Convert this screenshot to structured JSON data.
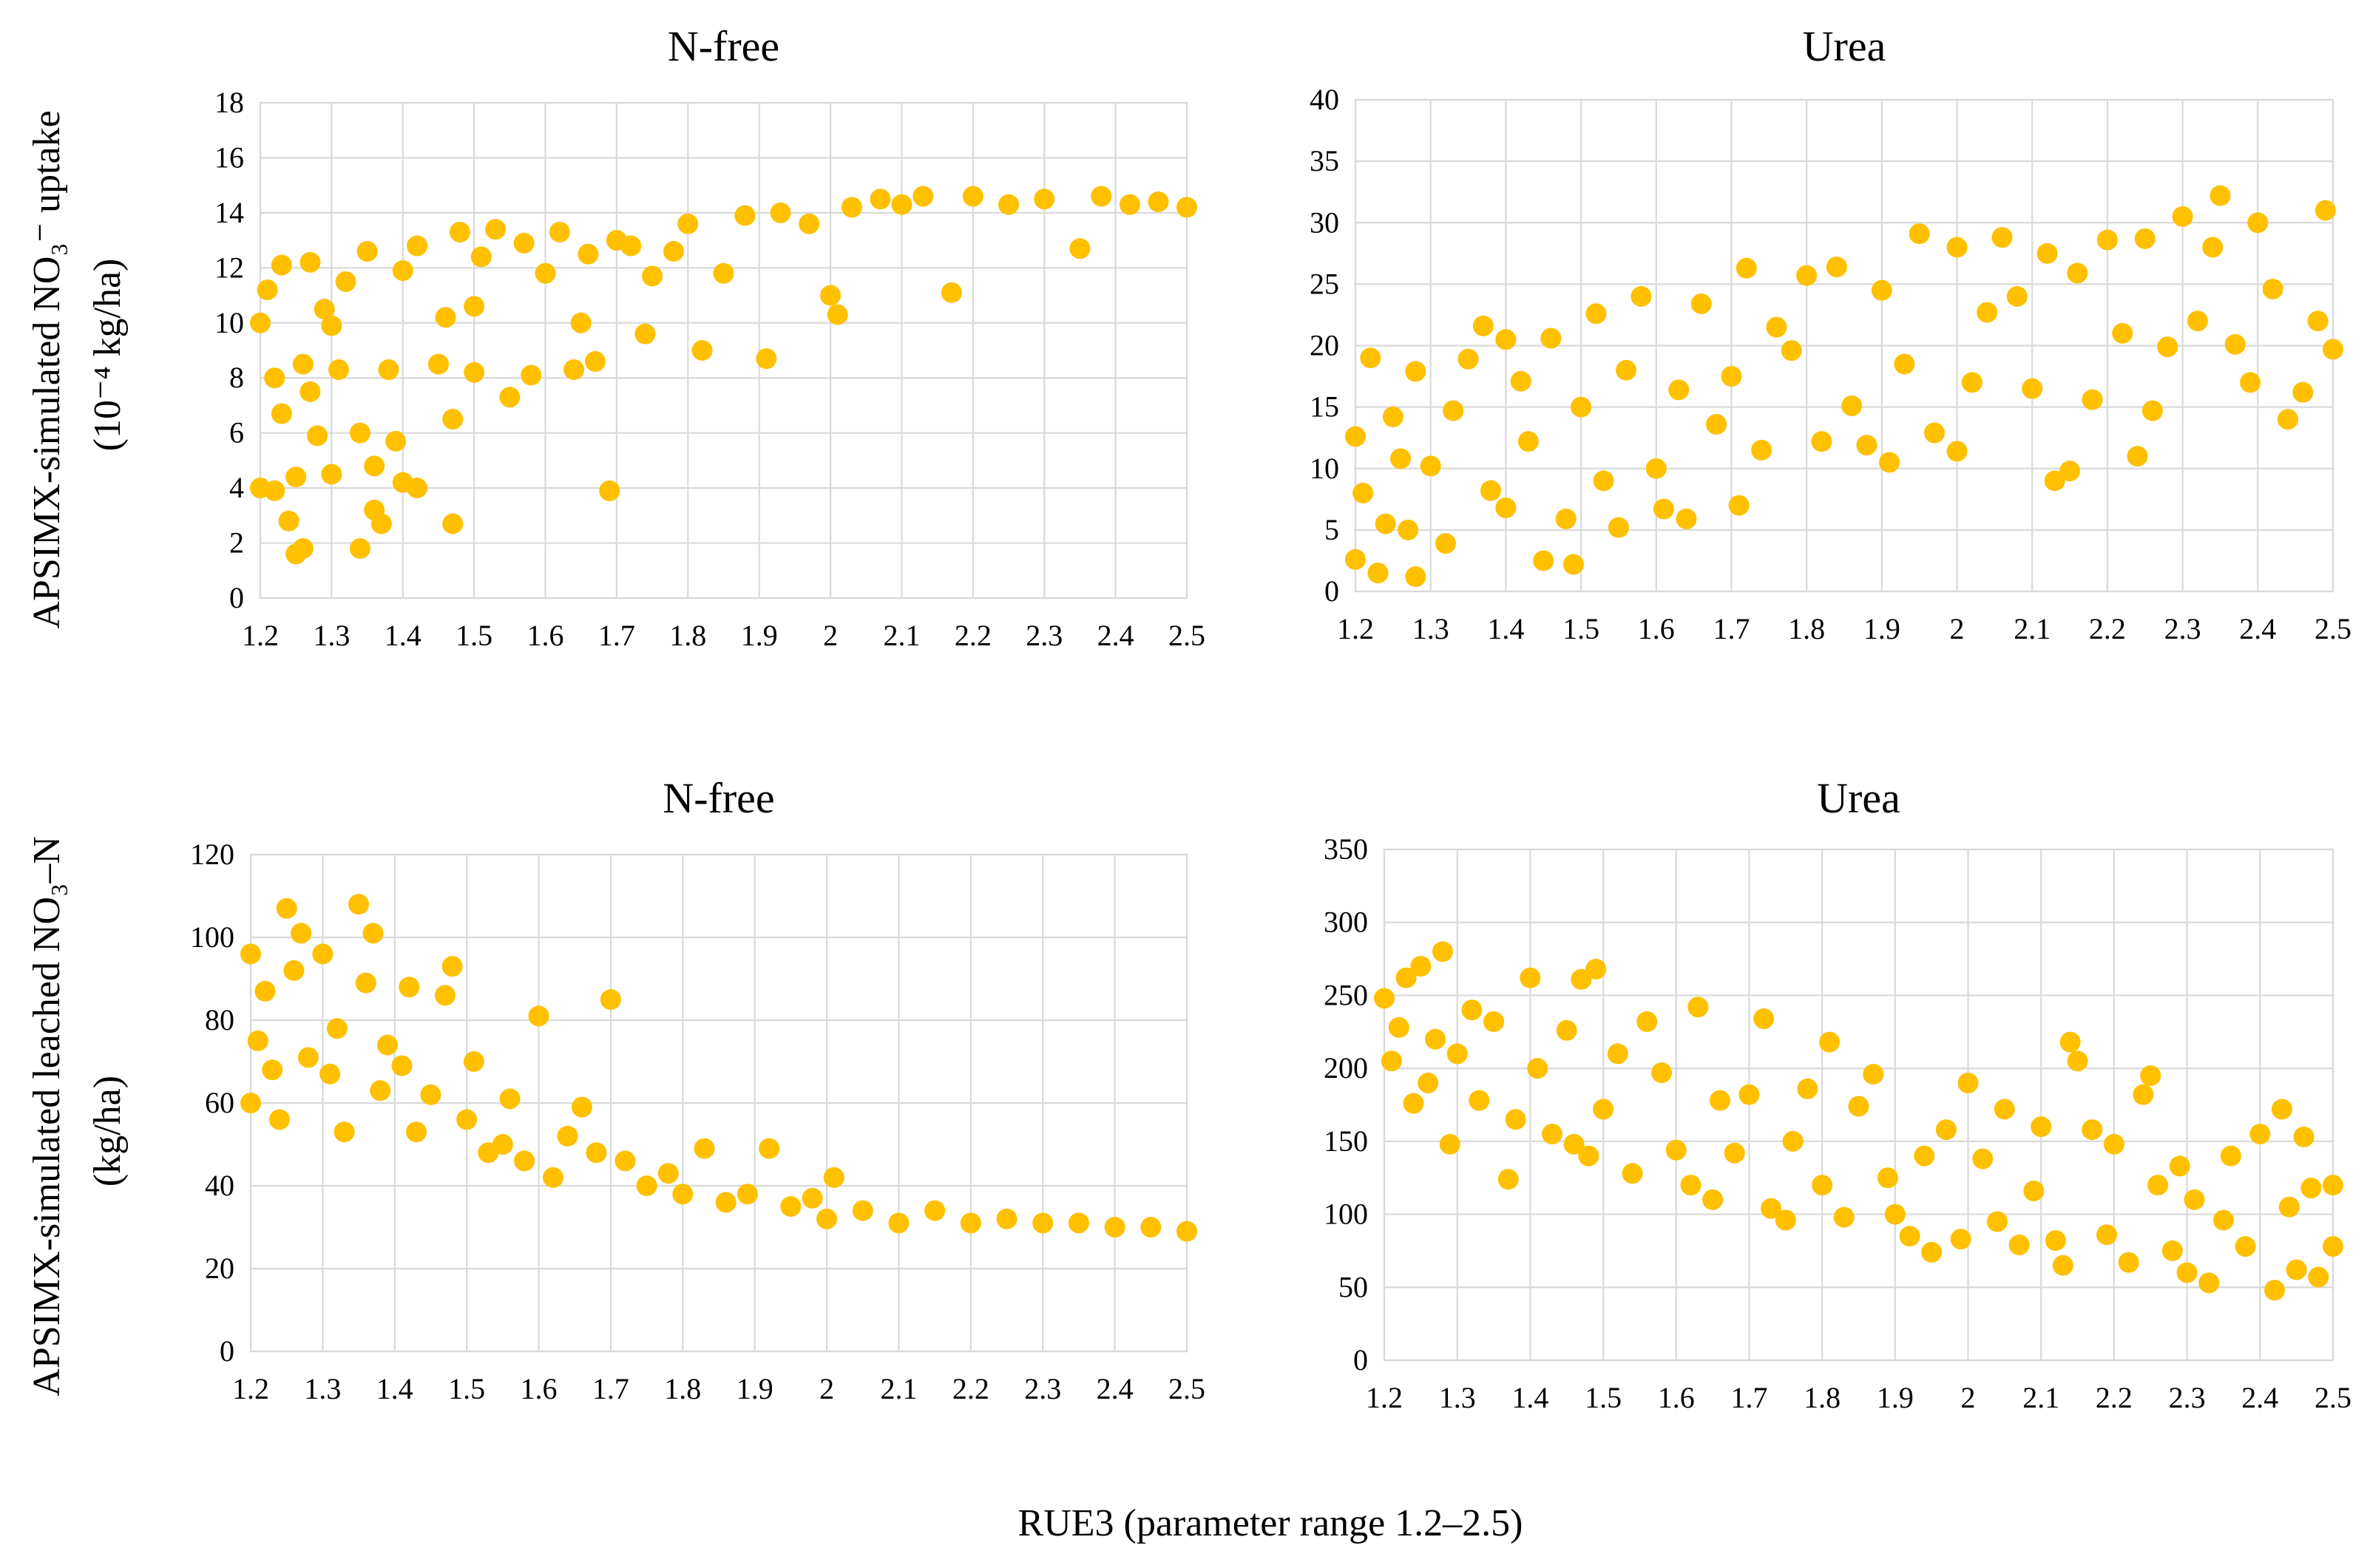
{
  "figure": {
    "y_label_top_line1": "APSIMX-simulated NO₃⁻ uptake",
    "y_label_top_line2": "(10⁻⁴ kg/ha)",
    "y_label_bottom_line1": "APSIMX-simulated leached NO₃–N",
    "y_label_bottom_line2": "(kg/ha)",
    "x_label": "RUE3 (parameter range 1.2–2.5)"
  },
  "colors": {
    "marker": "#FFC000",
    "grid": "#D9D9D9",
    "text": "#000000"
  },
  "chart_data": [
    {
      "id": "uptake-nfree",
      "type": "scatter",
      "title": "N-free",
      "xlim": [
        1.2,
        2.5
      ],
      "ylim": [
        0,
        18
      ],
      "xticks": [
        "1.2",
        "1.3",
        "1.4",
        "1.5",
        "1.6",
        "1.7",
        "1.8",
        "1.9",
        "2",
        "2.1",
        "2.2",
        "2.3",
        "2.4",
        "2.5"
      ],
      "yticks": [
        "0",
        "2",
        "4",
        "6",
        "8",
        "10",
        "12",
        "14",
        "16",
        "18"
      ],
      "trend": "increasing-saturating",
      "points": [
        [
          1.2,
          4.0
        ],
        [
          1.2,
          10.0
        ],
        [
          1.21,
          11.2
        ],
        [
          1.22,
          3.9
        ],
        [
          1.22,
          8.0
        ],
        [
          1.23,
          12.1
        ],
        [
          1.23,
          6.7
        ],
        [
          1.24,
          2.8
        ],
        [
          1.25,
          1.6
        ],
        [
          1.25,
          4.4
        ],
        [
          1.26,
          1.8
        ],
        [
          1.26,
          8.5
        ],
        [
          1.27,
          7.5
        ],
        [
          1.27,
          12.2
        ],
        [
          1.28,
          5.9
        ],
        [
          1.29,
          10.5
        ],
        [
          1.3,
          4.5
        ],
        [
          1.3,
          9.9
        ],
        [
          1.31,
          8.3
        ],
        [
          1.32,
          11.5
        ],
        [
          1.34,
          6.0
        ],
        [
          1.34,
          1.8
        ],
        [
          1.35,
          12.6
        ],
        [
          1.36,
          3.2
        ],
        [
          1.36,
          4.8
        ],
        [
          1.37,
          2.7
        ],
        [
          1.38,
          8.3
        ],
        [
          1.39,
          5.7
        ],
        [
          1.4,
          4.2
        ],
        [
          1.4,
          11.9
        ],
        [
          1.42,
          4.0
        ],
        [
          1.42,
          12.8
        ],
        [
          1.45,
          8.5
        ],
        [
          1.46,
          10.2
        ],
        [
          1.47,
          6.5
        ],
        [
          1.47,
          2.7
        ],
        [
          1.48,
          13.3
        ],
        [
          1.5,
          10.6
        ],
        [
          1.5,
          8.2
        ],
        [
          1.51,
          12.4
        ],
        [
          1.53,
          13.4
        ],
        [
          1.55,
          7.3
        ],
        [
          1.57,
          12.9
        ],
        [
          1.58,
          8.1
        ],
        [
          1.6,
          11.8
        ],
        [
          1.62,
          13.3
        ],
        [
          1.64,
          8.3
        ],
        [
          1.65,
          10.0
        ],
        [
          1.66,
          12.5
        ],
        [
          1.67,
          8.6
        ],
        [
          1.69,
          3.9
        ],
        [
          1.7,
          13.0
        ],
        [
          1.72,
          12.8
        ],
        [
          1.74,
          9.6
        ],
        [
          1.75,
          11.7
        ],
        [
          1.78,
          12.6
        ],
        [
          1.8,
          13.6
        ],
        [
          1.82,
          9.0
        ],
        [
          1.85,
          11.8
        ],
        [
          1.88,
          13.9
        ],
        [
          1.91,
          8.7
        ],
        [
          1.93,
          14.0
        ],
        [
          1.97,
          13.6
        ],
        [
          2.0,
          11.0
        ],
        [
          2.01,
          10.3
        ],
        [
          2.03,
          14.2
        ],
        [
          2.07,
          14.5
        ],
        [
          2.1,
          14.3
        ],
        [
          2.13,
          14.6
        ],
        [
          2.17,
          11.1
        ],
        [
          2.2,
          14.6
        ],
        [
          2.25,
          14.3
        ],
        [
          2.3,
          14.5
        ],
        [
          2.35,
          12.7
        ],
        [
          2.38,
          14.6
        ],
        [
          2.42,
          14.3
        ],
        [
          2.46,
          14.4
        ],
        [
          2.5,
          14.2
        ]
      ]
    },
    {
      "id": "uptake-urea",
      "type": "scatter",
      "title": "Urea",
      "xlim": [
        1.2,
        2.5
      ],
      "ylim": [
        0,
        40
      ],
      "xticks": [
        "1.2",
        "1.3",
        "1.4",
        "1.5",
        "1.6",
        "1.7",
        "1.8",
        "1.9",
        "2",
        "2.1",
        "2.2",
        "2.3",
        "2.4",
        "2.5"
      ],
      "yticks": [
        "0",
        "5",
        "10",
        "15",
        "20",
        "25",
        "30",
        "35",
        "40"
      ],
      "trend": "increasing",
      "points": [
        [
          1.2,
          12.6
        ],
        [
          1.2,
          2.6
        ],
        [
          1.21,
          8.0
        ],
        [
          1.22,
          19.0
        ],
        [
          1.23,
          1.5
        ],
        [
          1.24,
          5.5
        ],
        [
          1.25,
          14.2
        ],
        [
          1.26,
          10.8
        ],
        [
          1.27,
          5.0
        ],
        [
          1.28,
          1.2
        ],
        [
          1.28,
          17.9
        ],
        [
          1.3,
          10.2
        ],
        [
          1.32,
          3.9
        ],
        [
          1.33,
          14.7
        ],
        [
          1.35,
          18.9
        ],
        [
          1.37,
          21.6
        ],
        [
          1.38,
          8.2
        ],
        [
          1.4,
          6.8
        ],
        [
          1.4,
          20.5
        ],
        [
          1.42,
          17.1
        ],
        [
          1.43,
          12.2
        ],
        [
          1.45,
          2.5
        ],
        [
          1.46,
          20.6
        ],
        [
          1.48,
          5.9
        ],
        [
          1.49,
          2.2
        ],
        [
          1.5,
          15.0
        ],
        [
          1.52,
          22.6
        ],
        [
          1.53,
          9.0
        ],
        [
          1.55,
          5.2
        ],
        [
          1.56,
          18.0
        ],
        [
          1.58,
          24.0
        ],
        [
          1.6,
          10.0
        ],
        [
          1.61,
          6.7
        ],
        [
          1.63,
          16.4
        ],
        [
          1.64,
          5.9
        ],
        [
          1.66,
          23.4
        ],
        [
          1.68,
          13.6
        ],
        [
          1.7,
          17.5
        ],
        [
          1.71,
          7.0
        ],
        [
          1.72,
          26.3
        ],
        [
          1.74,
          11.5
        ],
        [
          1.76,
          21.5
        ],
        [
          1.78,
          19.6
        ],
        [
          1.8,
          25.7
        ],
        [
          1.82,
          12.2
        ],
        [
          1.84,
          26.4
        ],
        [
          1.86,
          15.1
        ],
        [
          1.88,
          11.9
        ],
        [
          1.9,
          24.5
        ],
        [
          1.91,
          10.5
        ],
        [
          1.93,
          18.5
        ],
        [
          1.95,
          29.1
        ],
        [
          1.97,
          12.9
        ],
        [
          2.0,
          11.4
        ],
        [
          2.0,
          28.0
        ],
        [
          2.02,
          17.0
        ],
        [
          2.04,
          22.7
        ],
        [
          2.06,
          28.8
        ],
        [
          2.08,
          24.0
        ],
        [
          2.1,
          16.5
        ],
        [
          2.12,
          27.5
        ],
        [
          2.13,
          9.0
        ],
        [
          2.15,
          9.8
        ],
        [
          2.16,
          25.9
        ],
        [
          2.18,
          15.6
        ],
        [
          2.2,
          28.6
        ],
        [
          2.22,
          21.0
        ],
        [
          2.24,
          11.0
        ],
        [
          2.25,
          28.7
        ],
        [
          2.26,
          14.7
        ],
        [
          2.28,
          19.9
        ],
        [
          2.3,
          30.5
        ],
        [
          2.32,
          22.0
        ],
        [
          2.34,
          28.0
        ],
        [
          2.35,
          32.2
        ],
        [
          2.37,
          20.1
        ],
        [
          2.39,
          17.0
        ],
        [
          2.4,
          30.0
        ],
        [
          2.42,
          24.6
        ],
        [
          2.44,
          14.0
        ],
        [
          2.46,
          16.2
        ],
        [
          2.48,
          22.0
        ],
        [
          2.49,
          31.0
        ],
        [
          2.5,
          19.7
        ]
      ]
    },
    {
      "id": "leached-nfree",
      "type": "scatter",
      "title": "N-free",
      "xlim": [
        1.2,
        2.5
      ],
      "ylim": [
        0,
        120
      ],
      "xticks": [
        "1.2",
        "1.3",
        "1.4",
        "1.5",
        "1.6",
        "1.7",
        "1.8",
        "1.9",
        "2",
        "2.1",
        "2.2",
        "2.3",
        "2.4",
        "2.5"
      ],
      "yticks": [
        "0",
        "20",
        "40",
        "60",
        "80",
        "100",
        "120"
      ],
      "trend": "decreasing-saturating",
      "points": [
        [
          1.2,
          96.0
        ],
        [
          1.2,
          60.0
        ],
        [
          1.21,
          75.0
        ],
        [
          1.22,
          87.0
        ],
        [
          1.23,
          68.0
        ],
        [
          1.24,
          56.0
        ],
        [
          1.25,
          107.0
        ],
        [
          1.26,
          92.0
        ],
        [
          1.27,
          101.0
        ],
        [
          1.28,
          71.0
        ],
        [
          1.3,
          96.0
        ],
        [
          1.31,
          67.0
        ],
        [
          1.32,
          78.0
        ],
        [
          1.33,
          53.0
        ],
        [
          1.35,
          108.0
        ],
        [
          1.36,
          89.0
        ],
        [
          1.37,
          101.0
        ],
        [
          1.38,
          63.0
        ],
        [
          1.39,
          74.0
        ],
        [
          1.41,
          69.0
        ],
        [
          1.42,
          88.0
        ],
        [
          1.43,
          53.0
        ],
        [
          1.45,
          62.0
        ],
        [
          1.47,
          86.0
        ],
        [
          1.48,
          93.0
        ],
        [
          1.5,
          56.0
        ],
        [
          1.51,
          70.0
        ],
        [
          1.53,
          48.0
        ],
        [
          1.55,
          50.0
        ],
        [
          1.56,
          61.0
        ],
        [
          1.58,
          46.0
        ],
        [
          1.6,
          81.0
        ],
        [
          1.62,
          42.0
        ],
        [
          1.64,
          52.0
        ],
        [
          1.66,
          59.0
        ],
        [
          1.68,
          48.0
        ],
        [
          1.7,
          85.0
        ],
        [
          1.72,
          46.0
        ],
        [
          1.75,
          40.0
        ],
        [
          1.78,
          43.0
        ],
        [
          1.8,
          38.0
        ],
        [
          1.83,
          49.0
        ],
        [
          1.86,
          36.0
        ],
        [
          1.89,
          38.0
        ],
        [
          1.92,
          49.0
        ],
        [
          1.95,
          35.0
        ],
        [
          1.98,
          37.0
        ],
        [
          2.0,
          32.0
        ],
        [
          2.01,
          42.0
        ],
        [
          2.05,
          34.0
        ],
        [
          2.1,
          31.0
        ],
        [
          2.15,
          34.0
        ],
        [
          2.2,
          31.0
        ],
        [
          2.25,
          32.0
        ],
        [
          2.3,
          31.0
        ],
        [
          2.35,
          31.0
        ],
        [
          2.4,
          30.0
        ],
        [
          2.45,
          30.0
        ],
        [
          2.5,
          29.0
        ]
      ]
    },
    {
      "id": "leached-urea",
      "type": "scatter",
      "title": "Urea",
      "xlim": [
        1.2,
        2.5
      ],
      "ylim": [
        0,
        350
      ],
      "xticks": [
        "1.2",
        "1.3",
        "1.4",
        "1.5",
        "1.6",
        "1.7",
        "1.8",
        "1.9",
        "2",
        "2.1",
        "2.2",
        "2.3",
        "2.4",
        "2.5"
      ],
      "yticks": [
        "0",
        "50",
        "100",
        "150",
        "200",
        "250",
        "300",
        "350"
      ],
      "trend": "decreasing",
      "points": [
        [
          1.2,
          248.0
        ],
        [
          1.21,
          205.0
        ],
        [
          1.22,
          228.0
        ],
        [
          1.23,
          262.0
        ],
        [
          1.24,
          176.0
        ],
        [
          1.25,
          270.0
        ],
        [
          1.26,
          190.0
        ],
        [
          1.27,
          220.0
        ],
        [
          1.28,
          280.0
        ],
        [
          1.29,
          148.0
        ],
        [
          1.3,
          210.0
        ],
        [
          1.32,
          240.0
        ],
        [
          1.33,
          178.0
        ],
        [
          1.35,
          232.0
        ],
        [
          1.37,
          124.0
        ],
        [
          1.38,
          165.0
        ],
        [
          1.4,
          262.0
        ],
        [
          1.41,
          200.0
        ],
        [
          1.43,
          155.0
        ],
        [
          1.45,
          226.0
        ],
        [
          1.46,
          148.0
        ],
        [
          1.47,
          261.0
        ],
        [
          1.48,
          140.0
        ],
        [
          1.49,
          268.0
        ],
        [
          1.5,
          172.0
        ],
        [
          1.52,
          210.0
        ],
        [
          1.54,
          128.0
        ],
        [
          1.56,
          232.0
        ],
        [
          1.58,
          197.0
        ],
        [
          1.6,
          144.0
        ],
        [
          1.62,
          120.0
        ],
        [
          1.63,
          242.0
        ],
        [
          1.65,
          110.0
        ],
        [
          1.66,
          178.0
        ],
        [
          1.68,
          142.0
        ],
        [
          1.7,
          182.0
        ],
        [
          1.72,
          234.0
        ],
        [
          1.73,
          104.0
        ],
        [
          1.75,
          96.0
        ],
        [
          1.76,
          150.0
        ],
        [
          1.78,
          186.0
        ],
        [
          1.8,
          120.0
        ],
        [
          1.81,
          218.0
        ],
        [
          1.83,
          98.0
        ],
        [
          1.85,
          174.0
        ],
        [
          1.87,
          196.0
        ],
        [
          1.89,
          125.0
        ],
        [
          1.9,
          100.0
        ],
        [
          1.92,
          85.0
        ],
        [
          1.94,
          140.0
        ],
        [
          1.95,
          74.0
        ],
        [
          1.97,
          158.0
        ],
        [
          1.99,
          83.0
        ],
        [
          2.0,
          190.0
        ],
        [
          2.02,
          138.0
        ],
        [
          2.04,
          95.0
        ],
        [
          2.05,
          172.0
        ],
        [
          2.07,
          79.0
        ],
        [
          2.09,
          116.0
        ],
        [
          2.1,
          160.0
        ],
        [
          2.12,
          82.0
        ],
        [
          2.13,
          65.0
        ],
        [
          2.14,
          218.0
        ],
        [
          2.15,
          205.0
        ],
        [
          2.17,
          158.0
        ],
        [
          2.19,
          86.0
        ],
        [
          2.2,
          148.0
        ],
        [
          2.22,
          67.0
        ],
        [
          2.24,
          182.0
        ],
        [
          2.25,
          195.0
        ],
        [
          2.26,
          120.0
        ],
        [
          2.28,
          75.0
        ],
        [
          2.29,
          133.0
        ],
        [
          2.3,
          60.0
        ],
        [
          2.31,
          110.0
        ],
        [
          2.33,
          53.0
        ],
        [
          2.35,
          96.0
        ],
        [
          2.36,
          140.0
        ],
        [
          2.38,
          78.0
        ],
        [
          2.4,
          155.0
        ],
        [
          2.42,
          48.0
        ],
        [
          2.43,
          172.0
        ],
        [
          2.44,
          105.0
        ],
        [
          2.45,
          62.0
        ],
        [
          2.46,
          153.0
        ],
        [
          2.47,
          118.0
        ],
        [
          2.48,
          57.0
        ],
        [
          2.5,
          120.0
        ],
        [
          2.5,
          78.0
        ]
      ]
    }
  ]
}
